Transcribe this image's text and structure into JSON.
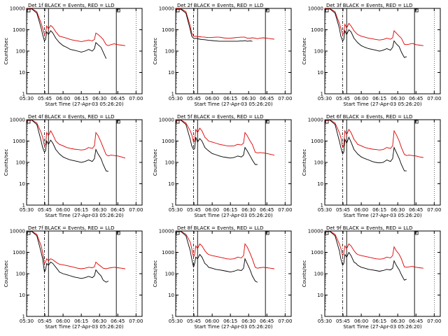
{
  "chart_data": {
    "type": "line",
    "scale": "log",
    "ylabel": "Counts/sec",
    "xlabel": "Start Time (27-Apr-03 05:26:20)",
    "x_tick_labels": [
      "05:30",
      "05:45",
      "06:00",
      "06:15",
      "06:30",
      "06:45",
      "07:00"
    ],
    "y_tick_labels": [
      "1",
      "10",
      "100",
      "1000",
      "10000"
    ],
    "ylim": [
      1,
      10000
    ],
    "x_domain_hours": [
      5.5,
      7.0833
    ],
    "legend_text": "BLACK = Events, RED = LLD",
    "series_colors": {
      "events": "#000000",
      "lld": "#dd0000"
    },
    "time_knots": [
      5.5,
      5.57,
      5.64,
      5.7,
      5.72,
      5.745,
      5.76,
      5.775,
      5.8,
      5.83,
      5.86,
      5.9,
      5.93,
      5.95,
      6.0,
      6.05,
      6.1,
      6.15,
      6.2,
      6.25,
      6.3,
      6.35,
      6.4,
      6.43,
      6.45,
      6.48,
      6.52,
      6.55,
      6.59,
      6.62,
      6.655,
      6.7,
      6.75,
      6.8,
      6.85
    ],
    "panels": [
      {
        "title": "Det 1f",
        "events": [
          9000,
          9500,
          6000,
          1200,
          600,
          300,
          350,
          800,
          600,
          900,
          700,
          400,
          300,
          250,
          180,
          150,
          120,
          110,
          100,
          90,
          100,
          120,
          100,
          130,
          250,
          200,
          150,
          90,
          45,
          null,
          null,
          null,
          null,
          null,
          null
        ],
        "lld": [
          9500,
          9800,
          7000,
          2000,
          1200,
          600,
          700,
          1500,
          1100,
          1600,
          1300,
          800,
          600,
          500,
          450,
          400,
          350,
          320,
          300,
          280,
          300,
          330,
          300,
          350,
          700,
          600,
          450,
          350,
          200,
          180,
          200,
          220,
          200,
          190,
          180
        ]
      },
      {
        "title": "Det 2f",
        "events": [
          9000,
          9200,
          6000,
          1000,
          500,
          400,
          380,
          400,
          380,
          360,
          350,
          340,
          330,
          320,
          310,
          300,
          290,
          290,
          290,
          290,
          290,
          290,
          300,
          300,
          310,
          290,
          300,
          290,
          null,
          null,
          null,
          null,
          null,
          null,
          null
        ],
        "lld": [
          9500,
          9800,
          7000,
          1500,
          700,
          500,
          480,
          500,
          480,
          470,
          460,
          450,
          440,
          430,
          440,
          450,
          450,
          420,
          400,
          400,
          420,
          440,
          450,
          450,
          450,
          400,
          400,
          420,
          400,
          380,
          400,
          420,
          400,
          380,
          360
        ]
      },
      {
        "title": "Det 3f",
        "events": [
          9000,
          9500,
          6000,
          1200,
          500,
          300,
          350,
          900,
          600,
          1000,
          800,
          400,
          300,
          250,
          180,
          150,
          130,
          120,
          110,
          100,
          110,
          130,
          110,
          150,
          300,
          220,
          160,
          90,
          50,
          55,
          null,
          null,
          null,
          null,
          null
        ],
        "lld": [
          9500,
          9800,
          7000,
          2000,
          1200,
          600,
          700,
          1800,
          1200,
          2000,
          1500,
          900,
          700,
          600,
          500,
          450,
          400,
          380,
          350,
          330,
          350,
          400,
          360,
          420,
          900,
          700,
          500,
          400,
          210,
          200,
          210,
          230,
          200,
          190,
          180
        ]
      },
      {
        "title": "Det 4f",
        "events": [
          9000,
          9500,
          6000,
          1000,
          500,
          300,
          350,
          1000,
          700,
          1100,
          800,
          400,
          300,
          250,
          180,
          150,
          130,
          120,
          110,
          100,
          110,
          130,
          110,
          150,
          400,
          250,
          150,
          80,
          40,
          38,
          null,
          null,
          null,
          null,
          null
        ],
        "lld": [
          9500,
          9800,
          7000,
          2500,
          1500,
          600,
          700,
          2500,
          1800,
          3000,
          2000,
          1000,
          800,
          700,
          600,
          500,
          450,
          420,
          400,
          380,
          400,
          500,
          450,
          600,
          2500,
          1800,
          900,
          500,
          230,
          200,
          220,
          210,
          200,
          180,
          160
        ]
      },
      {
        "title": "Det 5f",
        "events": [
          9000,
          9500,
          6000,
          1200,
          600,
          400,
          450,
          1500,
          900,
          1300,
          1000,
          500,
          400,
          350,
          260,
          230,
          200,
          180,
          170,
          160,
          170,
          200,
          180,
          220,
          500,
          350,
          200,
          130,
          80,
          80,
          null,
          null,
          null,
          null,
          null
        ],
        "lld": [
          9500,
          9800,
          7000,
          3000,
          2000,
          900,
          1000,
          3500,
          2500,
          4000,
          3000,
          1500,
          1200,
          1000,
          900,
          800,
          700,
          650,
          600,
          580,
          600,
          700,
          650,
          800,
          2500,
          1800,
          1000,
          700,
          300,
          280,
          290,
          280,
          260,
          240,
          220
        ]
      },
      {
        "title": "Det 6f",
        "events": [
          9000,
          9500,
          6000,
          1000,
          500,
          250,
          300,
          1200,
          800,
          1500,
          900,
          400,
          300,
          250,
          180,
          150,
          130,
          110,
          100,
          95,
          100,
          130,
          110,
          150,
          500,
          300,
          150,
          80,
          40,
          40,
          null,
          null,
          null,
          null,
          null
        ],
        "lld": [
          9500,
          9800,
          7000,
          2500,
          1500,
          500,
          600,
          3000,
          2000,
          3500,
          2500,
          1200,
          900,
          700,
          600,
          500,
          450,
          420,
          400,
          380,
          400,
          500,
          450,
          600,
          3000,
          2000,
          1000,
          500,
          240,
          210,
          220,
          210,
          200,
          180,
          170
        ]
      },
      {
        "title": "Det 7f",
        "events": [
          9000,
          9500,
          6000,
          1000,
          500,
          120,
          150,
          300,
          250,
          350,
          300,
          200,
          150,
          120,
          100,
          90,
          80,
          70,
          65,
          60,
          65,
          75,
          65,
          80,
          150,
          110,
          80,
          50,
          40,
          45,
          null,
          null,
          null,
          null,
          null
        ],
        "lld": [
          9500,
          9800,
          7000,
          2000,
          1000,
          300,
          350,
          500,
          400,
          500,
          450,
          350,
          300,
          280,
          260,
          240,
          220,
          200,
          180,
          170,
          180,
          200,
          190,
          210,
          350,
          280,
          220,
          180,
          170,
          180,
          190,
          200,
          190,
          180,
          170
        ]
      },
      {
        "title": "Det 8f",
        "events": [
          9000,
          9500,
          6000,
          1200,
          500,
          200,
          300,
          600,
          500,
          800,
          600,
          300,
          250,
          200,
          180,
          160,
          150,
          140,
          130,
          120,
          130,
          150,
          140,
          180,
          500,
          300,
          150,
          80,
          45,
          40,
          null,
          null,
          null,
          null,
          null
        ],
        "lld": [
          9500,
          9800,
          7000,
          3000,
          1500,
          600,
          800,
          2000,
          1500,
          2500,
          2000,
          1200,
          900,
          800,
          700,
          650,
          600,
          550,
          500,
          480,
          500,
          600,
          550,
          700,
          2500,
          1800,
          900,
          500,
          200,
          180,
          190,
          200,
          190,
          180,
          170
        ]
      },
      {
        "title": "Det 9f",
        "events": [
          9000,
          9500,
          6000,
          1200,
          500,
          250,
          300,
          800,
          600,
          1000,
          700,
          350,
          300,
          250,
          200,
          180,
          160,
          150,
          140,
          130,
          140,
          160,
          150,
          180,
          400,
          250,
          150,
          90,
          50,
          55,
          null,
          null,
          null,
          null,
          null
        ],
        "lld": [
          9500,
          9800,
          7000,
          2500,
          1500,
          700,
          900,
          2000,
          1500,
          2500,
          2000,
          1200,
          900,
          800,
          700,
          650,
          600,
          550,
          500,
          480,
          500,
          600,
          550,
          700,
          1800,
          1200,
          800,
          500,
          210,
          200,
          210,
          220,
          200,
          190,
          180
        ]
      }
    ]
  }
}
